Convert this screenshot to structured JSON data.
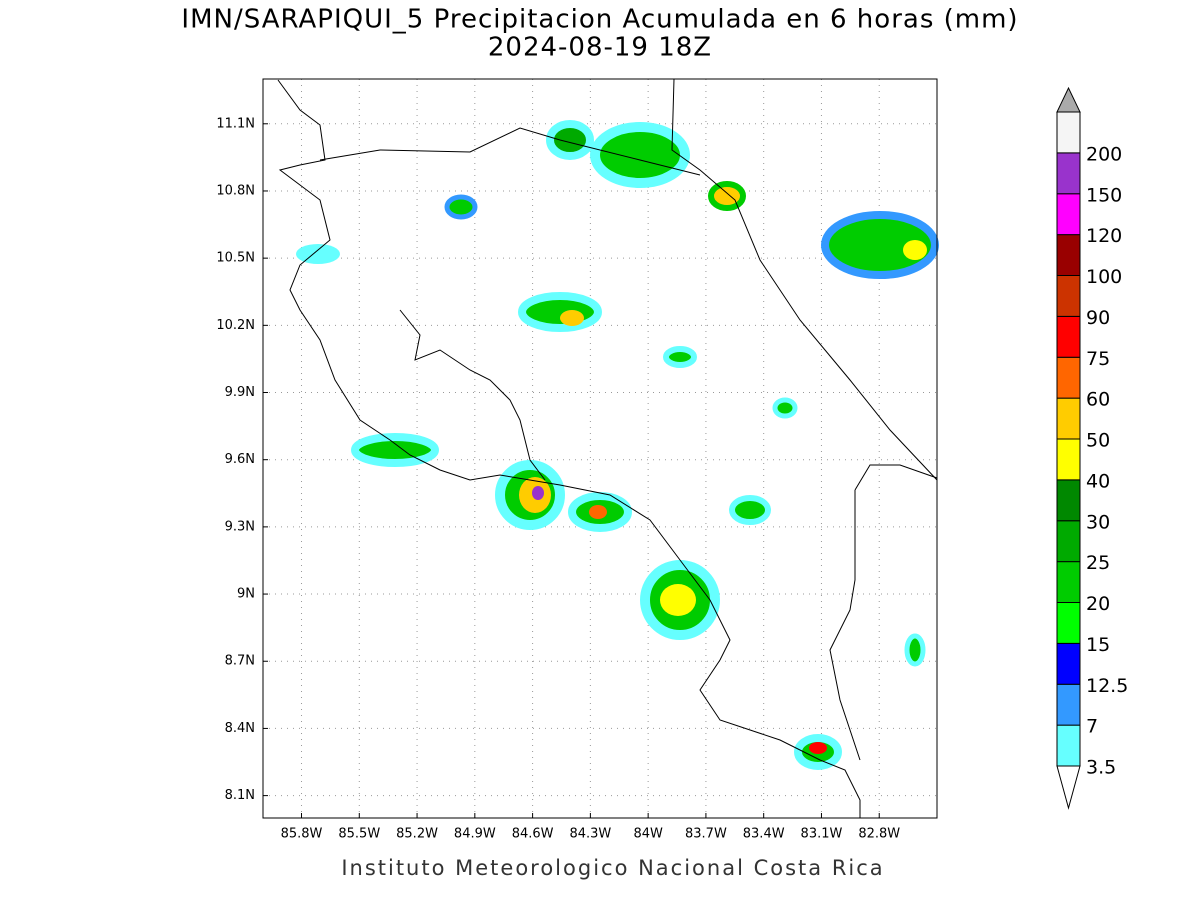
{
  "title": "IMN/SARAPIQUI_5 Precipitacion Acumulada en 6 horas (mm)",
  "subtitle": "2024-08-19 18Z",
  "footer": "Instituto Meteorologico Nacional Costa Rica",
  "map": {
    "lonlim": [
      -86.0,
      -82.5
    ],
    "latlim": [
      8.0,
      11.3
    ],
    "grid": true,
    "lon_ticks": [
      {
        "value": -85.8,
        "label": "85.8W"
      },
      {
        "value": -85.5,
        "label": "85.5W"
      },
      {
        "value": -85.2,
        "label": "85.2W"
      },
      {
        "value": -84.9,
        "label": "84.9W"
      },
      {
        "value": -84.6,
        "label": "84.6W"
      },
      {
        "value": -84.3,
        "label": "84.3W"
      },
      {
        "value": -84.0,
        "label": "84W"
      },
      {
        "value": -83.7,
        "label": "83.7W"
      },
      {
        "value": -83.4,
        "label": "83.4W"
      },
      {
        "value": -83.1,
        "label": "83.1W"
      },
      {
        "value": -82.8,
        "label": "82.8W"
      }
    ],
    "lat_ticks": [
      {
        "value": 8.1,
        "label": "8.1N"
      },
      {
        "value": 8.4,
        "label": "8.4N"
      },
      {
        "value": 8.7,
        "label": "8.7N"
      },
      {
        "value": 9.0,
        "label": "9N"
      },
      {
        "value": 9.3,
        "label": "9.3N"
      },
      {
        "value": 9.6,
        "label": "9.6N"
      },
      {
        "value": 9.9,
        "label": "9.9N"
      },
      {
        "value": 10.2,
        "label": "10.2N"
      },
      {
        "value": 10.5,
        "label": "10.5N"
      },
      {
        "value": 10.8,
        "label": "10.8N"
      },
      {
        "value": 11.1,
        "label": "11.1N"
      }
    ]
  },
  "colorbar": {
    "levels": [
      3.5,
      7,
      12.5,
      15,
      20,
      25,
      30,
      40,
      50,
      60,
      75,
      90,
      100,
      120,
      150,
      200
    ],
    "colors": [
      "#66ffff",
      "#3399ff",
      "#0000ff",
      "#00ff00",
      "#00cc00",
      "#00aa00",
      "#008800",
      "#ffff00",
      "#ffcc00",
      "#ff6600",
      "#ff0000",
      "#cc3300",
      "#990000",
      "#ff00ff",
      "#9933cc",
      "#f5f5f5"
    ],
    "below_color": "#ffffff",
    "above_color": "#aaaaaa"
  }
}
